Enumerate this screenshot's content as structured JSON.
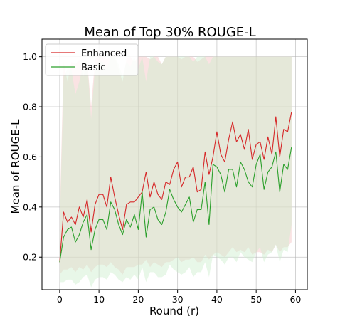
{
  "chart_data": {
    "type": "line",
    "title": "Mean of Top 30% ROUGE-L",
    "xlabel": "Round (r)",
    "ylabel": "Mean of ROUGE-L",
    "xlim": [
      -4.5,
      63
    ],
    "ylim": [
      0.07,
      1.07
    ],
    "xticks": [
      0,
      10,
      20,
      30,
      40,
      50,
      60
    ],
    "yticks": [
      0.2,
      0.4,
      0.6,
      0.8,
      1.0
    ],
    "xtick_labels": [
      "0",
      "10",
      "20",
      "30",
      "40",
      "50",
      "60"
    ],
    "ytick_labels": [
      "0.2",
      "0.4",
      "0.6",
      "0.8",
      "1.0"
    ],
    "grid": true,
    "legend_position": "top-left",
    "x": [
      0,
      1,
      2,
      3,
      4,
      5,
      6,
      7,
      8,
      9,
      10,
      11,
      12,
      13,
      14,
      15,
      16,
      17,
      18,
      19,
      20,
      21,
      22,
      23,
      24,
      25,
      26,
      27,
      28,
      29,
      30,
      31,
      32,
      33,
      34,
      35,
      36,
      37,
      38,
      39,
      40,
      41,
      42,
      43,
      44,
      45,
      46,
      47,
      48,
      49,
      50,
      51,
      52,
      53,
      54,
      55,
      56,
      57,
      58,
      59
    ],
    "series": [
      {
        "name": "Enhanced",
        "color": "#d62728",
        "band_color": "#f4c2c2",
        "values": [
          0.18,
          0.38,
          0.34,
          0.36,
          0.33,
          0.4,
          0.36,
          0.43,
          0.3,
          0.41,
          0.45,
          0.45,
          0.4,
          0.52,
          0.44,
          0.37,
          0.31,
          0.41,
          0.42,
          0.42,
          0.44,
          0.46,
          0.54,
          0.44,
          0.5,
          0.45,
          0.43,
          0.5,
          0.49,
          0.55,
          0.58,
          0.48,
          0.52,
          0.52,
          0.56,
          0.46,
          0.47,
          0.62,
          0.53,
          0.6,
          0.7,
          0.61,
          0.58,
          0.67,
          0.74,
          0.66,
          0.69,
          0.63,
          0.71,
          0.59,
          0.65,
          0.66,
          0.59,
          0.68,
          0.61,
          0.76,
          0.6,
          0.71,
          0.7,
          0.78
        ],
        "lower": [
          0.13,
          0.15,
          0.15,
          0.16,
          0.14,
          0.16,
          0.15,
          0.17,
          0.14,
          0.16,
          0.17,
          0.17,
          0.16,
          0.18,
          0.16,
          0.15,
          0.13,
          0.16,
          0.16,
          0.16,
          0.17,
          0.17,
          0.19,
          0.16,
          0.18,
          0.17,
          0.16,
          0.18,
          0.18,
          0.19,
          0.2,
          0.18,
          0.19,
          0.19,
          0.2,
          0.18,
          0.18,
          0.21,
          0.19,
          0.21,
          0.22,
          0.21,
          0.2,
          0.22,
          0.24,
          0.22,
          0.23,
          0.22,
          0.24,
          0.21,
          0.22,
          0.22,
          0.21,
          0.23,
          0.22,
          0.25,
          0.22,
          0.24,
          0.24,
          0.26
        ],
        "upper": [
          0.35,
          0.98,
          0.9,
          0.98,
          0.97,
          0.99,
          0.92,
          0.99,
          0.8,
          0.99,
          1.0,
          1.0,
          0.99,
          1.0,
          1.0,
          0.95,
          0.9,
          0.99,
          1.0,
          0.98,
          1.0,
          1.0,
          1.0,
          0.99,
          1.0,
          1.0,
          0.97,
          1.0,
          1.0,
          1.0,
          1.0,
          0.99,
          1.0,
          1.0,
          1.0,
          0.98,
          0.99,
          1.0,
          1.0,
          1.0,
          1.0,
          1.0,
          1.0,
          1.0,
          1.0,
          1.0,
          1.0,
          1.0,
          1.0,
          1.0,
          1.0,
          1.0,
          1.0,
          1.0,
          1.0,
          1.0,
          1.0,
          1.0,
          1.0,
          1.0
        ]
      },
      {
        "name": "Basic",
        "color": "#2ca02c",
        "band_color": "#cdeecd",
        "values": [
          0.18,
          0.28,
          0.31,
          0.32,
          0.26,
          0.29,
          0.34,
          0.37,
          0.23,
          0.31,
          0.35,
          0.35,
          0.31,
          0.42,
          0.39,
          0.33,
          0.29,
          0.35,
          0.32,
          0.37,
          0.31,
          0.46,
          0.28,
          0.39,
          0.4,
          0.35,
          0.33,
          0.38,
          0.47,
          0.43,
          0.4,
          0.38,
          0.41,
          0.44,
          0.34,
          0.39,
          0.39,
          0.5,
          0.33,
          0.57,
          0.56,
          0.53,
          0.46,
          0.55,
          0.55,
          0.48,
          0.58,
          0.55,
          0.5,
          0.48,
          0.57,
          0.61,
          0.47,
          0.54,
          0.56,
          0.62,
          0.46,
          0.57,
          0.55,
          0.64
        ],
        "lower": [
          0.1,
          0.1,
          0.11,
          0.11,
          0.09,
          0.1,
          0.12,
          0.13,
          0.08,
          0.11,
          0.12,
          0.12,
          0.11,
          0.14,
          0.13,
          0.11,
          0.1,
          0.12,
          0.11,
          0.13,
          0.11,
          0.16,
          0.1,
          0.14,
          0.14,
          0.12,
          0.12,
          0.13,
          0.17,
          0.15,
          0.14,
          0.13,
          0.14,
          0.16,
          0.12,
          0.14,
          0.14,
          0.18,
          0.12,
          0.21,
          0.2,
          0.19,
          0.17,
          0.2,
          0.2,
          0.18,
          0.22,
          0.2,
          0.19,
          0.18,
          0.22,
          0.24,
          0.18,
          0.21,
          0.22,
          0.25,
          0.18,
          0.23,
          0.22,
          0.33
        ],
        "upper": [
          0.3,
          0.92,
          0.95,
          0.95,
          0.85,
          0.9,
          0.97,
          0.99,
          0.75,
          0.96,
          0.98,
          0.98,
          0.95,
          1.0,
          1.0,
          0.97,
          0.92,
          0.98,
          0.96,
          1.0,
          0.95,
          1.0,
          0.9,
          1.0,
          1.0,
          0.98,
          0.97,
          1.0,
          1.0,
          1.0,
          1.0,
          1.0,
          1.0,
          1.0,
          0.98,
          1.0,
          1.0,
          1.0,
          0.97,
          1.0,
          1.0,
          1.0,
          1.0,
          1.0,
          1.0,
          1.0,
          1.0,
          1.0,
          1.0,
          1.0,
          1.0,
          1.0,
          1.0,
          1.0,
          1.0,
          1.0,
          1.0,
          1.0,
          1.0,
          1.0
        ]
      }
    ]
  }
}
